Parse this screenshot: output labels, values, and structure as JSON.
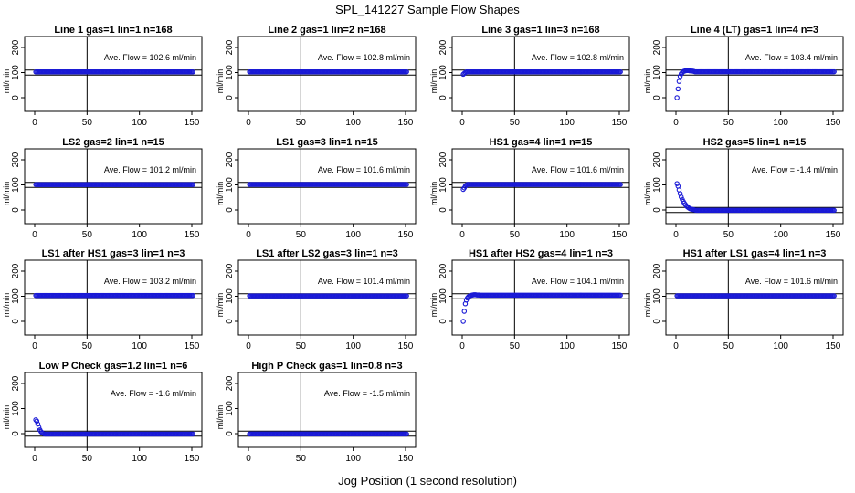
{
  "figure": {
    "title": "SPL_141227  Sample Flow Shapes",
    "xlabel": "Jog Position (1 second resolution)"
  },
  "chart_data": [
    {
      "type": "scatter",
      "title": "Line 1 gas=1 lin=1 n=168",
      "ylabel": "ml/min",
      "annotation": "Ave. Flow =  102.6  ml/min",
      "xlim": [
        0,
        150
      ],
      "ylim": [
        -20,
        210
      ],
      "xticks": [
        0,
        50,
        100,
        150
      ],
      "yticks": [
        0,
        100,
        200
      ],
      "hlines": [
        90,
        110
      ],
      "vline": 50,
      "shape": "flat",
      "plateau": 102.6,
      "start_values": []
    },
    {
      "type": "scatter",
      "title": "Line 2 gas=1 lin=2 n=168",
      "ylabel": "ml/min",
      "annotation": "Ave. Flow =  102.8  ml/min",
      "xlim": [
        0,
        150
      ],
      "ylim": [
        -20,
        210
      ],
      "xticks": [
        0,
        50,
        100,
        150
      ],
      "yticks": [
        0,
        100,
        200
      ],
      "hlines": [
        90,
        110
      ],
      "vline": 50,
      "shape": "flat",
      "plateau": 102.8,
      "start_values": []
    },
    {
      "type": "scatter",
      "title": "Line 3 gas=1 lin=3 n=168",
      "ylabel": "ml/min",
      "annotation": "Ave. Flow =  102.8  ml/min",
      "xlim": [
        0,
        150
      ],
      "ylim": [
        -20,
        210
      ],
      "xticks": [
        0,
        50,
        100,
        150
      ],
      "yticks": [
        0,
        100,
        200
      ],
      "hlines": [
        90,
        110
      ],
      "vline": 50,
      "shape": "rise",
      "plateau": 102.8,
      "start_values": [
        93,
        97,
        100
      ]
    },
    {
      "type": "scatter",
      "title": "Line 4 (LT) gas=1 lin=4 n=3",
      "ylabel": "ml/min",
      "annotation": "Ave. Flow =  103.4  ml/min",
      "xlim": [
        0,
        150
      ],
      "ylim": [
        -20,
        210
      ],
      "xticks": [
        0,
        50,
        100,
        150
      ],
      "yticks": [
        0,
        100,
        200
      ],
      "hlines": [
        90,
        110
      ],
      "vline": 50,
      "shape": "rise",
      "plateau": 103.4,
      "start_values": [
        0,
        35,
        65,
        85,
        95,
        100,
        104,
        106,
        107,
        108,
        108,
        108,
        107,
        107,
        106,
        106,
        105
      ]
    },
    {
      "type": "scatter",
      "title": "LS2 gas=2 lin=1 n=15",
      "ylabel": "ml/min",
      "annotation": "Ave. Flow =  101.2  ml/min",
      "xlim": [
        0,
        150
      ],
      "ylim": [
        -20,
        210
      ],
      "xticks": [
        0,
        50,
        100,
        150
      ],
      "yticks": [
        0,
        100,
        200
      ],
      "hlines": [
        90,
        110
      ],
      "vline": 50,
      "shape": "flat",
      "plateau": 101.2,
      "start_values": []
    },
    {
      "type": "scatter",
      "title": "LS1 gas=3 lin=1 n=15",
      "ylabel": "ml/min",
      "annotation": "Ave. Flow =  101.6  ml/min",
      "xlim": [
        0,
        150
      ],
      "ylim": [
        -20,
        210
      ],
      "xticks": [
        0,
        50,
        100,
        150
      ],
      "yticks": [
        0,
        100,
        200
      ],
      "hlines": [
        90,
        110
      ],
      "vline": 50,
      "shape": "flat",
      "plateau": 101.6,
      "start_values": []
    },
    {
      "type": "scatter",
      "title": "HS1 gas=4 lin=1 n=15",
      "ylabel": "ml/min",
      "annotation": "Ave. Flow =  101.6  ml/min",
      "xlim": [
        0,
        150
      ],
      "ylim": [
        -20,
        210
      ],
      "xticks": [
        0,
        50,
        100,
        150
      ],
      "yticks": [
        0,
        100,
        200
      ],
      "hlines": [
        90,
        110
      ],
      "vline": 50,
      "shape": "rise",
      "plateau": 101.6,
      "start_values": [
        82,
        88,
        95,
        99
      ]
    },
    {
      "type": "scatter",
      "title": "HS2 gas=5 lin=1 n=15",
      "ylabel": "ml/min",
      "annotation": "Ave. Flow =  -1.4  ml/min",
      "xlim": [
        0,
        150
      ],
      "ylim": [
        -20,
        210
      ],
      "xticks": [
        0,
        50,
        100,
        150
      ],
      "yticks": [
        0,
        100,
        200
      ],
      "hlines": [
        -10,
        10
      ],
      "vline": 50,
      "shape": "decay",
      "plateau": -1.4,
      "start_values": [
        105,
        95,
        80,
        65,
        52,
        42,
        34,
        27,
        21,
        16,
        12,
        9,
        6,
        4,
        3,
        2,
        1,
        0,
        -1
      ]
    },
    {
      "type": "scatter",
      "title": "LS1 after HS1 gas=3 lin=1 n=3",
      "ylabel": "ml/min",
      "annotation": "Ave. Flow =  103.2  ml/min",
      "xlim": [
        0,
        150
      ],
      "ylim": [
        -20,
        210
      ],
      "xticks": [
        0,
        50,
        100,
        150
      ],
      "yticks": [
        0,
        100,
        200
      ],
      "hlines": [
        90,
        110
      ],
      "vline": 50,
      "shape": "flat",
      "plateau": 103.2,
      "start_values": []
    },
    {
      "type": "scatter",
      "title": "LS1 after LS2 gas=3 lin=1 n=3",
      "ylabel": "ml/min",
      "annotation": "Ave. Flow =  101.4  ml/min",
      "xlim": [
        0,
        150
      ],
      "ylim": [
        -20,
        210
      ],
      "xticks": [
        0,
        50,
        100,
        150
      ],
      "yticks": [
        0,
        100,
        200
      ],
      "hlines": [
        90,
        110
      ],
      "vline": 50,
      "shape": "flat",
      "plateau": 101.4,
      "start_values": []
    },
    {
      "type": "scatter",
      "title": "HS1 after HS2 gas=4 lin=1 n=3",
      "ylabel": "ml/min",
      "annotation": "Ave. Flow =  104.1  ml/min",
      "xlim": [
        0,
        150
      ],
      "ylim": [
        -20,
        210
      ],
      "xticks": [
        0,
        50,
        100,
        150
      ],
      "yticks": [
        0,
        100,
        200
      ],
      "hlines": [
        90,
        110
      ],
      "vline": 50,
      "shape": "rise",
      "plateau": 104.1,
      "start_values": [
        0,
        40,
        70,
        85,
        93,
        98,
        101,
        103,
        104,
        105,
        106,
        106,
        106,
        105,
        105,
        105,
        104
      ]
    },
    {
      "type": "scatter",
      "title": "HS1 after LS1 gas=4 lin=1 n=3",
      "ylabel": "ml/min",
      "annotation": "Ave. Flow =  101.6  ml/min",
      "xlim": [
        0,
        150
      ],
      "ylim": [
        -20,
        210
      ],
      "xticks": [
        0,
        50,
        100,
        150
      ],
      "yticks": [
        0,
        100,
        200
      ],
      "hlines": [
        90,
        110
      ],
      "vline": 50,
      "shape": "flat",
      "plateau": 101.6,
      "start_values": []
    },
    {
      "type": "scatter",
      "title": "Low P Check gas=1.2 lin=1 n=6",
      "ylabel": "ml/min",
      "annotation": "Ave. Flow =  -1.6  ml/min",
      "xlim": [
        0,
        150
      ],
      "ylim": [
        -20,
        210
      ],
      "xticks": [
        0,
        50,
        100,
        150
      ],
      "yticks": [
        0,
        100,
        200
      ],
      "hlines": [
        -10,
        10
      ],
      "vline": 50,
      "shape": "decay",
      "plateau": -1.6,
      "start_values": [
        55,
        50,
        38,
        25,
        15,
        8,
        4,
        1,
        -1
      ]
    },
    {
      "type": "scatter",
      "title": "High P Check gas=1 lin=0.8 n=3",
      "ylabel": "ml/min",
      "annotation": "Ave. Flow =  -1.5  ml/min",
      "xlim": [
        0,
        150
      ],
      "ylim": [
        -20,
        210
      ],
      "xticks": [
        0,
        50,
        100,
        150
      ],
      "yticks": [
        0,
        100,
        200
      ],
      "hlines": [
        -10,
        10
      ],
      "vline": 50,
      "shape": "flat",
      "plateau": -1.5,
      "start_values": []
    }
  ]
}
